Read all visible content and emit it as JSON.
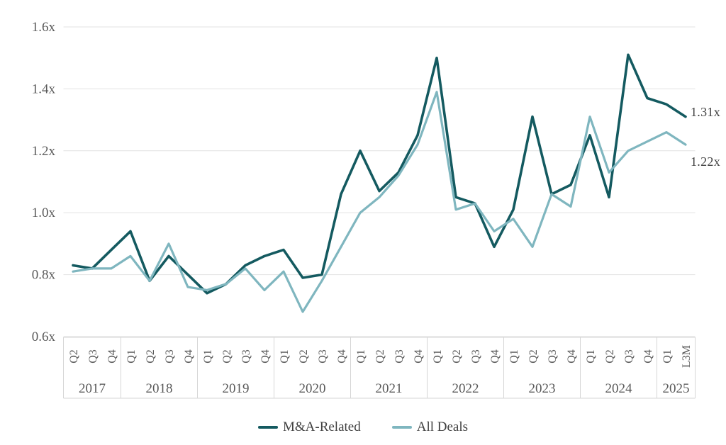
{
  "chart_data": {
    "type": "line",
    "title": "",
    "unit_suffix": "x",
    "categories": [
      "Q2",
      "Q3",
      "Q4",
      "Q1",
      "Q2",
      "Q3",
      "Q4",
      "Q1",
      "Q2",
      "Q3",
      "Q4",
      "Q1",
      "Q2",
      "Q3",
      "Q4",
      "Q1",
      "Q2",
      "Q3",
      "Q4",
      "Q1",
      "Q2",
      "Q3",
      "Q4",
      "Q1",
      "Q2",
      "Q3",
      "Q4",
      "Q1",
      "Q2",
      "Q3",
      "Q4",
      "Q1",
      "L3M"
    ],
    "year_groups": [
      {
        "label": "2017",
        "count": 3
      },
      {
        "label": "2018",
        "count": 4
      },
      {
        "label": "2019",
        "count": 4
      },
      {
        "label": "2020",
        "count": 4
      },
      {
        "label": "2021",
        "count": 4
      },
      {
        "label": "2022",
        "count": 4
      },
      {
        "label": "2023",
        "count": 4
      },
      {
        "label": "2024",
        "count": 4
      },
      {
        "label": "2025",
        "count": 2
      }
    ],
    "series": [
      {
        "name": "M&A-Related",
        "color": "#145a60",
        "end_label": "1.31x",
        "values": [
          0.83,
          0.82,
          0.88,
          0.94,
          0.78,
          0.86,
          0.8,
          0.74,
          0.77,
          0.83,
          0.86,
          0.88,
          0.79,
          0.8,
          1.06,
          1.2,
          1.07,
          1.13,
          1.25,
          1.5,
          1.05,
          1.03,
          0.89,
          1.01,
          1.31,
          1.06,
          1.09,
          1.25,
          1.05,
          1.51,
          1.37,
          1.35,
          1.31
        ]
      },
      {
        "name": "All Deals",
        "color": "#7fb6bf",
        "end_label": "1.22x",
        "values": [
          0.81,
          0.82,
          0.82,
          0.86,
          0.78,
          0.9,
          0.76,
          0.75,
          0.77,
          0.82,
          0.75,
          0.81,
          0.68,
          0.78,
          0.89,
          1.0,
          1.05,
          1.12,
          1.22,
          1.39,
          1.01,
          1.03,
          0.94,
          0.98,
          0.89,
          1.06,
          1.02,
          1.31,
          1.13,
          1.2,
          1.23,
          1.26,
          1.22
        ]
      }
    ],
    "yaxis": {
      "tick_labels": [
        "1.6x",
        "1.4x",
        "1.2x",
        "1.0x",
        "0.8x",
        "0.6x"
      ],
      "tick_values": [
        1.6,
        1.4,
        1.2,
        1.0,
        0.8,
        0.6
      ],
      "min": 0.6,
      "max": 1.6,
      "gridlines": true
    },
    "legend_position": "bottom"
  },
  "colors": {
    "grid": "#e2e2e2",
    "band_border": "#d6d6d6",
    "axis_text": "#595959",
    "label_text": "#3f3f3f",
    "background": "#ffffff"
  }
}
